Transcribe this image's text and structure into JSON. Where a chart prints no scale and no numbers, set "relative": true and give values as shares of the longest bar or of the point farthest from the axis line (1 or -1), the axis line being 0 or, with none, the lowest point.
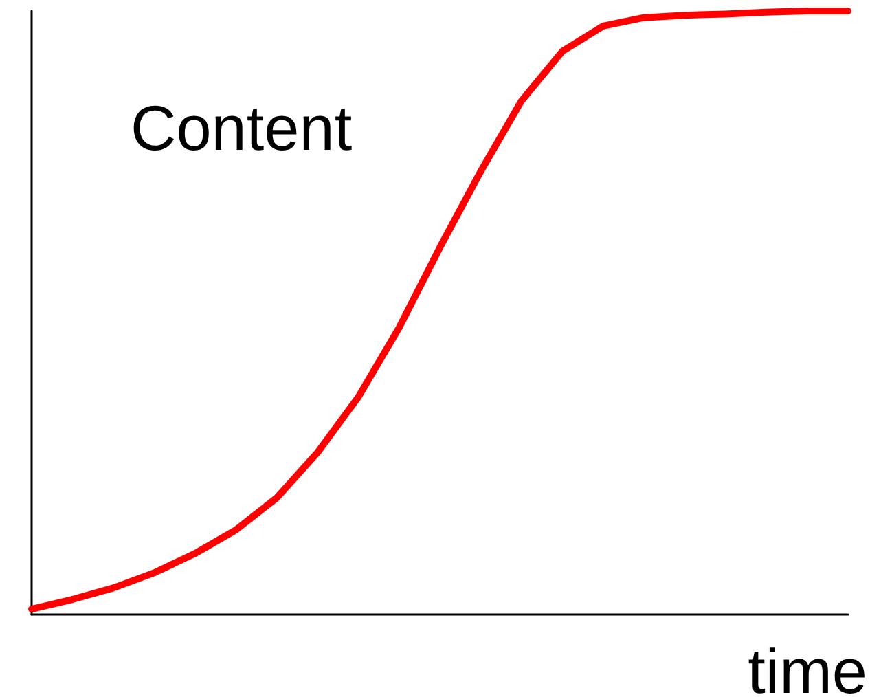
{
  "chart_data": {
    "type": "line",
    "ylabel": "Content",
    "xlabel": "time",
    "relative": true,
    "categories": [
      null,
      null,
      null,
      null,
      null,
      null,
      null,
      null,
      null,
      null,
      null,
      null,
      null,
      null,
      null,
      null,
      null,
      null,
      null,
      null,
      null
    ],
    "series": [
      {
        "color": "#ff0000",
        "values": [
          0.009,
          0.025,
          0.044,
          0.069,
          0.101,
          0.14,
          0.193,
          0.268,
          0.36,
          0.475,
          0.608,
          0.734,
          0.851,
          0.933,
          0.975,
          0.989,
          0.993,
          0.995,
          0.998,
          1,
          1
        ]
      }
    ],
    "grid": false,
    "marker": "none",
    "line_style": "solid"
  }
}
